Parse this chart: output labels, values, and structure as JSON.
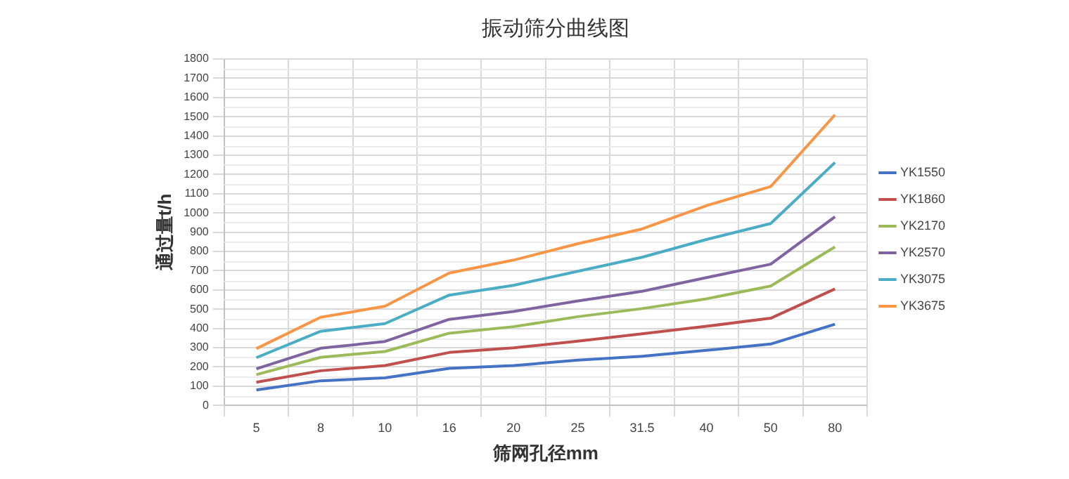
{
  "chart_data": {
    "type": "line",
    "title": "振动筛分曲线图",
    "xlabel": "筛网孔径mm",
    "ylabel": "通过量t/h",
    "categories": [
      "5",
      "8",
      "10",
      "16",
      "20",
      "25",
      "31.5",
      "40",
      "50",
      "80"
    ],
    "ylim": [
      0,
      1800
    ],
    "yticks": [
      0,
      100,
      200,
      300,
      400,
      500,
      600,
      700,
      800,
      900,
      1000,
      1100,
      1200,
      1300,
      1400,
      1500,
      1600,
      1700,
      1800
    ],
    "grid": true,
    "legend": "right",
    "marker": "none",
    "line_style": "solid",
    "series": [
      {
        "name": "YK1550",
        "color": "#4472c4",
        "values": [
          80,
          128,
          143,
          192,
          207,
          235,
          255,
          286,
          319,
          422
        ]
      },
      {
        "name": "YK1860",
        "color": "#c0504d",
        "values": [
          120,
          180,
          207,
          275,
          299,
          334,
          372,
          411,
          453,
          605
        ]
      },
      {
        "name": "YK2170",
        "color": "#9bbb59",
        "values": [
          160,
          250,
          280,
          375,
          409,
          461,
          503,
          554,
          620,
          824
        ]
      },
      {
        "name": "YK2570",
        "color": "#8064a2",
        "values": [
          190,
          297,
          332,
          447,
          488,
          543,
          593,
          664,
          734,
          980
        ]
      },
      {
        "name": "YK3075",
        "color": "#4bacc6",
        "values": [
          248,
          385,
          425,
          573,
          624,
          697,
          770,
          862,
          945,
          1262
        ]
      },
      {
        "name": "YK3675",
        "color": "#f79646",
        "values": [
          295,
          458,
          515,
          688,
          755,
          840,
          917,
          1038,
          1137,
          1510
        ]
      }
    ]
  }
}
